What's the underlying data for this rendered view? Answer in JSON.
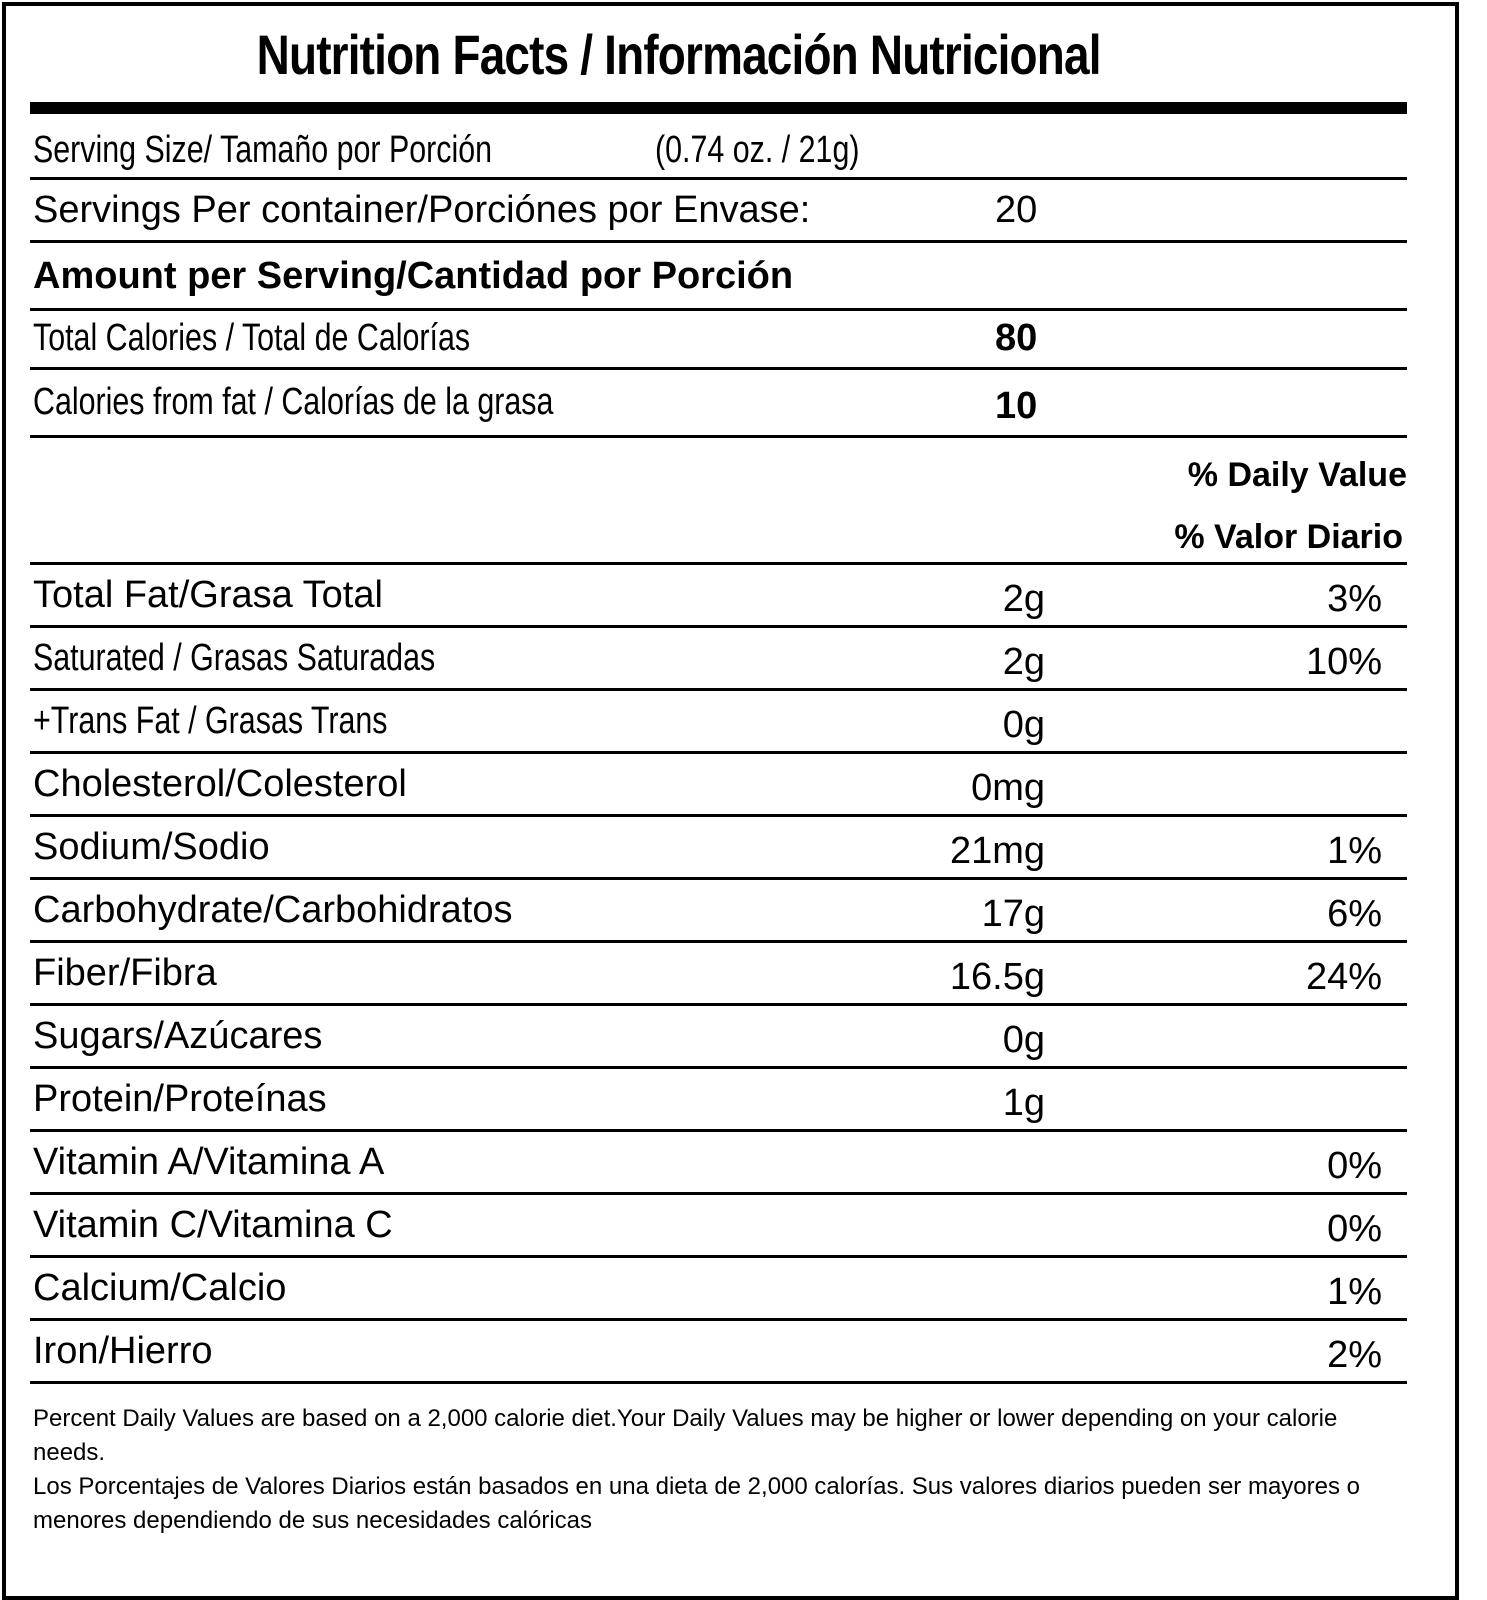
{
  "title": "Nutrition Facts / Información Nutricional",
  "serving_size": {
    "label": "Serving Size/ Tamaño por Porción",
    "value": "(0.74 oz. / 21g)"
  },
  "servings_per_container": {
    "label": "Servings Per container/Porciónes por Envase:",
    "value": "20"
  },
  "amount_per_serving": "Amount per Serving/Cantidad por Porción",
  "calories": {
    "label": "Total Calories / Total de Calorías",
    "value": "80"
  },
  "calories_fat": {
    "label": "Calories from fat / Calorías de la grasa",
    "value": "10"
  },
  "daily_value_header": {
    "en": "% Daily Value",
    "es": "% Valor Diario"
  },
  "nutrients": [
    {
      "label": "Total Fat/Grasa Total",
      "amount": "2g",
      "dv": "3%"
    },
    {
      "label": "Saturated / Grasas Saturadas",
      "amount": "2g",
      "dv": "10%"
    },
    {
      "label": "+Trans Fat / Grasas Trans",
      "amount": "0g",
      "dv": ""
    },
    {
      "label": "Cholesterol/Colesterol",
      "amount": "0mg",
      "dv": ""
    },
    {
      "label": "Sodium/Sodio",
      "amount": "21mg",
      "dv": "1%"
    },
    {
      "label": "Carbohydrate/Carbohidratos",
      "amount": "17g",
      "dv": "6%"
    },
    {
      "label": "Fiber/Fibra",
      "amount": "16.5g",
      "dv": "24%"
    },
    {
      "label": "Sugars/Azúcares",
      "amount": "0g",
      "dv": ""
    },
    {
      "label": "Protein/Proteínas",
      "amount": "1g",
      "dv": ""
    },
    {
      "label": "Vitamin A/Vitamina A",
      "amount": "",
      "dv": "0%"
    },
    {
      "label": "Vitamin C/Vitamina C",
      "amount": "",
      "dv": "0%"
    },
    {
      "label": "Calcium/Calcio",
      "amount": "",
      "dv": "1%"
    },
    {
      "label": "Iron/Hierro",
      "amount": "",
      "dv": "2%"
    }
  ],
  "footnote": {
    "en": "Percent Daily Values are based on a 2,000 calorie diet.Your Daily Values may be higher or lower depending on your calorie needs.",
    "es": "Los Porcentajes de Valores Diarios están basados en una dieta de 2,000 calorías. Sus valores diarios pueden ser mayores o menores dependiendo de sus necesidades calóricas"
  }
}
